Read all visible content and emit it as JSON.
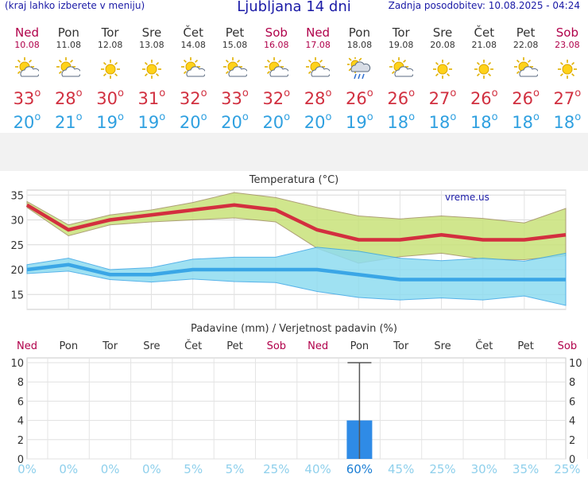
{
  "header": {
    "menu_hint": "(kraj lahko izberete v meniju)",
    "title": "Ljubljana 14 dni",
    "updated": "Zadnja posodobitev: 10.08.2025 - 04:24"
  },
  "days": [
    {
      "name": "Ned",
      "date": "10.08",
      "weekend": true,
      "icon": "partly-cloudy-icon",
      "tmax": "33",
      "tmin": "20"
    },
    {
      "name": "Pon",
      "date": "11.08",
      "weekend": false,
      "icon": "partly-cloudy-icon",
      "tmax": "28",
      "tmin": "21"
    },
    {
      "name": "Tor",
      "date": "12.08",
      "weekend": false,
      "icon": "sun-icon",
      "tmax": "30",
      "tmin": "19"
    },
    {
      "name": "Sre",
      "date": "13.08",
      "weekend": false,
      "icon": "sun-icon",
      "tmax": "31",
      "tmin": "19"
    },
    {
      "name": "Čet",
      "date": "14.08",
      "weekend": false,
      "icon": "partly-cloudy-icon",
      "tmax": "32",
      "tmin": "20"
    },
    {
      "name": "Pet",
      "date": "15.08",
      "weekend": false,
      "icon": "partly-cloudy-icon",
      "tmax": "33",
      "tmin": "20"
    },
    {
      "name": "Sob",
      "date": "16.08",
      "weekend": true,
      "icon": "partly-cloudy-icon",
      "tmax": "32",
      "tmin": "20"
    },
    {
      "name": "Ned",
      "date": "17.08",
      "weekend": true,
      "icon": "partly-cloudy-icon",
      "tmax": "28",
      "tmin": "20"
    },
    {
      "name": "Pon",
      "date": "18.08",
      "weekend": false,
      "icon": "rain-icon",
      "tmax": "26",
      "tmin": "19"
    },
    {
      "name": "Tor",
      "date": "19.08",
      "weekend": false,
      "icon": "partly-cloudy-icon",
      "tmax": "26",
      "tmin": "18"
    },
    {
      "name": "Sre",
      "date": "20.08",
      "weekend": false,
      "icon": "sun-icon",
      "tmax": "27",
      "tmin": "18"
    },
    {
      "name": "Čet",
      "date": "21.08",
      "weekend": false,
      "icon": "sun-icon",
      "tmax": "26",
      "tmin": "18"
    },
    {
      "name": "Pet",
      "date": "22.08",
      "weekend": false,
      "icon": "partly-cloudy-icon",
      "tmax": "26",
      "tmin": "18"
    },
    {
      "name": "Sob",
      "date": "23.08",
      "weekend": true,
      "icon": "sun-icon",
      "tmax": "27",
      "tmin": "18"
    }
  ],
  "degree_symbol": "o",
  "colors": {
    "tmax_line": "#d32f3f",
    "tmin_line": "#3aa6e6",
    "tmax_band": "#c8e27a",
    "tmin_band": "#8fdcf0",
    "weekend": "#b0004a",
    "bar": "#2f8be6"
  },
  "chart_data": [
    {
      "type": "line",
      "title": "Temperatura (°C)",
      "watermark": "vreme.us",
      "categories": [
        "10.08",
        "11.08",
        "12.08",
        "13.08",
        "14.08",
        "15.08",
        "16.08",
        "17.08",
        "18.08",
        "19.08",
        "20.08",
        "21.08",
        "22.08",
        "23.08"
      ],
      "ylim": [
        12,
        36
      ],
      "yticks": [
        15,
        20,
        25,
        30,
        35
      ],
      "grid": true,
      "series": [
        {
          "role": "tmax",
          "values": [
            33,
            28,
            30,
            31,
            32,
            33,
            32,
            28,
            26,
            26,
            27,
            26,
            26,
            27
          ]
        },
        {
          "role": "tmax_high",
          "values": [
            33.7,
            29,
            31,
            32,
            33.5,
            35.5,
            34.5,
            32.5,
            30.8,
            30.2,
            30.8,
            30.3,
            29.4,
            32.3
          ]
        },
        {
          "role": "tmax_low",
          "values": [
            32.5,
            26.8,
            29,
            29.6,
            30,
            30.4,
            29.6,
            24.3,
            21.3,
            22.6,
            23.3,
            22.1,
            22.0,
            22.8
          ]
        },
        {
          "role": "tmin",
          "values": [
            20,
            21,
            19,
            19,
            20,
            20,
            20,
            20,
            19,
            18,
            18,
            18,
            18,
            18
          ]
        },
        {
          "role": "tmin_high",
          "values": [
            21,
            22.3,
            20,
            20.4,
            22.1,
            22.5,
            22.5,
            24.5,
            23.7,
            22.3,
            21.8,
            22.3,
            21.7,
            23.3
          ]
        },
        {
          "role": "tmin_low",
          "values": [
            19.2,
            19.7,
            18,
            17.5,
            18.1,
            17.6,
            17.4,
            15.6,
            14.4,
            13.9,
            14.3,
            13.9,
            14.7,
            12.8
          ]
        }
      ]
    },
    {
      "type": "bar",
      "title": "Padavine (mm) / Verjetnost padavin (%)",
      "categories": [
        "Ned",
        "Pon",
        "Tor",
        "Sre",
        "Čet",
        "Pet",
        "Sob",
        "Ned",
        "Pon",
        "Tor",
        "Sre",
        "Čet",
        "Pet",
        "Sob"
      ],
      "values": [
        0,
        0,
        0,
        0,
        0,
        0,
        0,
        0,
        4,
        0,
        0,
        0,
        0,
        0
      ],
      "error_max": [
        0,
        0,
        0,
        0,
        0,
        0,
        0,
        0,
        10,
        0,
        0,
        0,
        0,
        0
      ],
      "probability": [
        "0%",
        "0%",
        "0%",
        "0%",
        "5%",
        "5%",
        "25%",
        "40%",
        "60%",
        "45%",
        "25%",
        "30%",
        "35%",
        "25%"
      ],
      "ylim": [
        0,
        10
      ],
      "yticks": [
        "0",
        "2",
        "4",
        "6",
        "8",
        "10"
      ],
      "grid": true
    }
  ]
}
